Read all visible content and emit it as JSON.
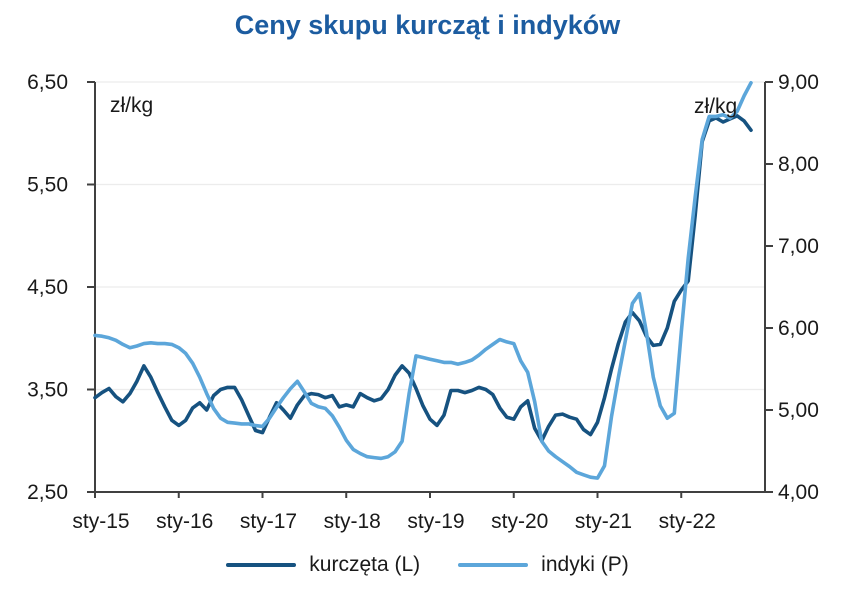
{
  "title": "Ceny skupu kurcząt i indyków",
  "title_color": "#1c5ca0",
  "legend": {
    "items": [
      {
        "label": "kurczęta (L)",
        "color": "#165280"
      },
      {
        "label": "indyki (P)",
        "color": "#5ca6da"
      }
    ]
  },
  "chart_data": {
    "type": "line",
    "title": "Ceny skupu kurcząt i indyków",
    "unit_left": "zł/kg",
    "unit_right": "zł/kg",
    "x_unit": "month",
    "x_tick_labels": [
      "sty-15",
      "sty-16",
      "sty-17",
      "sty-18",
      "sty-19",
      "sty-20",
      "sty-21",
      "sty-22"
    ],
    "left_axis": {
      "min": 2.5,
      "max": 6.5,
      "tick_labels": [
        "6,50",
        "5,50",
        "4,50",
        "3,50",
        "2,50"
      ],
      "tick_values": [
        6.5,
        5.5,
        4.5,
        3.5,
        2.5
      ]
    },
    "right_axis": {
      "min": 4.0,
      "max": 9.0,
      "tick_labels": [
        "9,00",
        "8,00",
        "7,00",
        "6,00",
        "5,00",
        "4,00"
      ],
      "tick_values": [
        9.0,
        8.0,
        7.0,
        6.0,
        5.0,
        4.0
      ]
    },
    "grid": "horizontal-light",
    "legend_position": "bottom",
    "series": [
      {
        "name": "kurczęta (L)",
        "axis": "left",
        "color": "#165280",
        "values": [
          3.42,
          3.47,
          3.51,
          3.43,
          3.38,
          3.46,
          3.58,
          3.73,
          3.62,
          3.47,
          3.33,
          3.2,
          3.15,
          3.2,
          3.32,
          3.37,
          3.3,
          3.44,
          3.5,
          3.52,
          3.52,
          3.4,
          3.25,
          3.1,
          3.08,
          3.23,
          3.37,
          3.3,
          3.22,
          3.35,
          3.44,
          3.46,
          3.45,
          3.42,
          3.44,
          3.33,
          3.35,
          3.33,
          3.46,
          3.42,
          3.39,
          3.41,
          3.5,
          3.64,
          3.73,
          3.66,
          3.51,
          3.34,
          3.21,
          3.15,
          3.25,
          3.49,
          3.49,
          3.47,
          3.49,
          3.52,
          3.5,
          3.45,
          3.32,
          3.23,
          3.21,
          3.33,
          3.39,
          3.12,
          3.0,
          3.14,
          3.25,
          3.26,
          3.23,
          3.21,
          3.11,
          3.06,
          3.18,
          3.42,
          3.7,
          3.95,
          4.16,
          4.25,
          4.17,
          4.02,
          3.93,
          3.94,
          4.1,
          4.36,
          4.47,
          4.56,
          5.2,
          5.92,
          6.12,
          6.15,
          6.11,
          6.14,
          6.17,
          6.12,
          6.03
        ]
      },
      {
        "name": "indyki (P)",
        "axis": "right",
        "color": "#5ca6da",
        "values": [
          5.91,
          5.9,
          5.88,
          5.85,
          5.8,
          5.76,
          5.78,
          5.81,
          5.82,
          5.81,
          5.81,
          5.8,
          5.76,
          5.69,
          5.57,
          5.4,
          5.2,
          5.02,
          4.9,
          4.85,
          4.84,
          4.83,
          4.83,
          4.81,
          4.8,
          4.9,
          5.03,
          5.15,
          5.26,
          5.35,
          5.22,
          5.08,
          5.04,
          5.02,
          4.93,
          4.79,
          4.63,
          4.52,
          4.47,
          4.43,
          4.42,
          4.41,
          4.43,
          4.49,
          4.62,
          5.2,
          5.66,
          5.64,
          5.62,
          5.6,
          5.58,
          5.58,
          5.56,
          5.58,
          5.61,
          5.67,
          5.74,
          5.8,
          5.86,
          5.83,
          5.81,
          5.6,
          5.46,
          5.1,
          4.62,
          4.5,
          4.43,
          4.37,
          4.31,
          4.24,
          4.21,
          4.18,
          4.17,
          4.32,
          4.92,
          5.4,
          5.85,
          6.3,
          6.42,
          5.95,
          5.4,
          5.05,
          4.9,
          4.96,
          5.95,
          6.85,
          7.6,
          8.3,
          8.58,
          8.58,
          8.6,
          8.56,
          8.64,
          8.83,
          8.99
        ]
      }
    ]
  }
}
